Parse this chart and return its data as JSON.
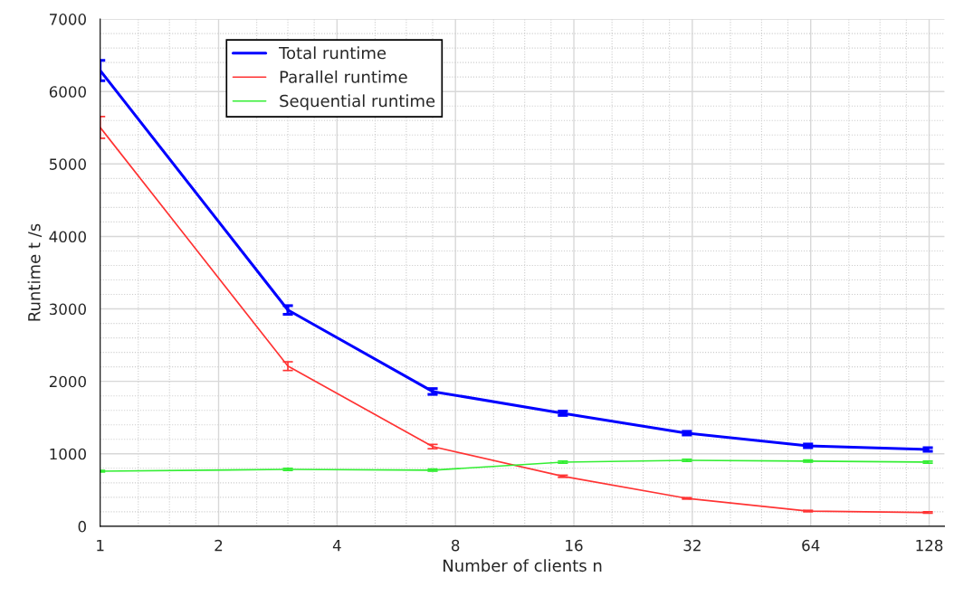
{
  "chart_data": {
    "type": "line",
    "xlabel": "Number of clients n",
    "ylabel": "Runtime t /s",
    "x": [
      1,
      3,
      7,
      15,
      31,
      63,
      127
    ],
    "log": "x",
    "xlim": [
      1,
      140
    ],
    "xticks": [
      1,
      2,
      4,
      8,
      16,
      32,
      64,
      128
    ],
    "ylim": [
      0,
      7000
    ],
    "yticks": [
      0,
      1000,
      2000,
      3000,
      4000,
      5000,
      6000,
      7000
    ],
    "grid": true,
    "legend": "top left",
    "line_style": "solid",
    "marker": "none",
    "series": [
      {
        "name": "Total runtime",
        "color": "#0000ff",
        "values": [
          6290,
          2985,
          1860,
          1560,
          1285,
          1110,
          1060
        ],
        "errors": [
          140,
          60,
          40,
          30,
          25,
          25,
          25
        ]
      },
      {
        "name": "Parallel runtime",
        "color": "#ff3333",
        "values": [
          5505,
          2210,
          1100,
          690,
          385,
          210,
          190
        ],
        "errors": [
          150,
          60,
          30,
          15,
          10,
          10,
          10
        ]
      },
      {
        "name": "Sequential runtime",
        "color": "#33ee33",
        "values": [
          760,
          785,
          775,
          885,
          910,
          900,
          885
        ],
        "errors": [
          10,
          15,
          15,
          15,
          15,
          15,
          15
        ]
      }
    ]
  }
}
